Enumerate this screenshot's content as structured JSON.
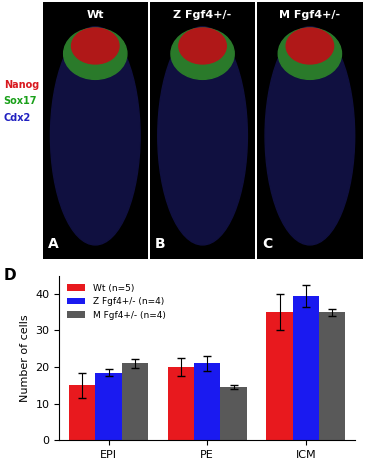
{
  "figure": {
    "panels": [
      {
        "letter": "A",
        "title": "Wt"
      },
      {
        "letter": "B",
        "title": "Z Fgf4+/-"
      },
      {
        "letter": "C",
        "title": "M Fgf4+/-"
      }
    ],
    "channels": [
      {
        "text": "Nanog",
        "color": "#d8181e"
      },
      {
        "text": "Sox17",
        "color": "#1aa01a"
      },
      {
        "text": "Cdx2",
        "color": "#2020c0"
      }
    ],
    "chart_label": "D"
  },
  "chart_data": {
    "type": "bar",
    "y_label": "Number of cells",
    "categories": [
      "EPI",
      "PE",
      "ICM"
    ],
    "series": [
      {
        "name": "Wt (n=5)",
        "color": "#e8191e",
        "values": [
          15,
          20,
          35
        ],
        "errors": [
          3.5,
          2.5,
          5
        ]
      },
      {
        "name": "Z Fgf4+/- (n=4)",
        "color": "#1a1af0",
        "values": [
          18.5,
          21,
          39.5
        ],
        "errors": [
          1,
          2,
          3
        ]
      },
      {
        "name": "M Fgf4+/- (n=4)",
        "color": "#595959",
        "values": [
          21,
          14.5,
          35
        ],
        "errors": [
          1.3,
          0.6,
          1
        ]
      }
    ],
    "ylim": [
      0,
      45
    ],
    "yticks": [
      0,
      10,
      20,
      30,
      40
    ],
    "legend": "upper left"
  }
}
